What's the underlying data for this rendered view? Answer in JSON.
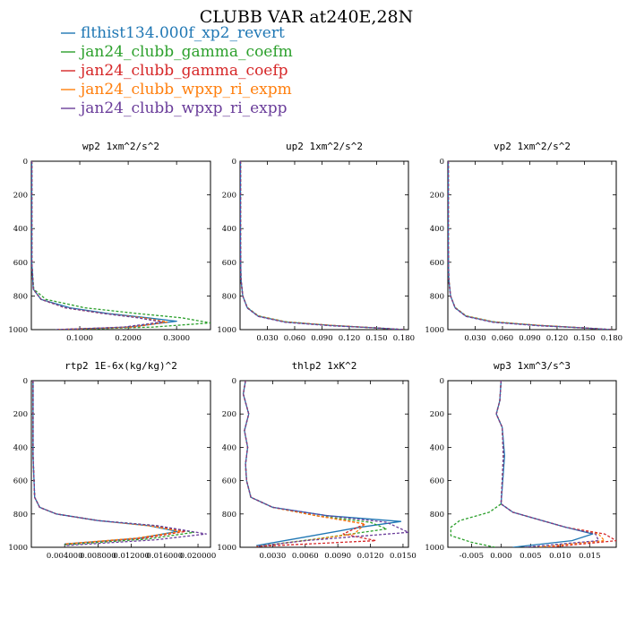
{
  "figure": {
    "title": "CLUBB VAR at240E,28N",
    "legend": [
      {
        "label": "flthist134.000f_xp2_revert",
        "color": "#1f77b4",
        "dash": false
      },
      {
        "label": "jan24_clubb_gamma_coefm",
        "color": "#2ca02c",
        "dash": true
      },
      {
        "label": "jan24_clubb_gamma_coefp",
        "color": "#d62728",
        "dash": true
      },
      {
        "label": "jan24_clubb_wpxp_ri_expm",
        "color": "#ff7f0e",
        "dash": true
      },
      {
        "label": "jan24_clubb_wpxp_ri_expp",
        "color": "#6a3d9a",
        "dash": true
      }
    ]
  },
  "chart_data": [
    {
      "type": "line",
      "title": "wp2  1xm^2/s^2",
      "xlim": [
        0,
        0.37
      ],
      "ylim": [
        1000,
        0
      ],
      "xticks": [
        0.1,
        0.2,
        0.3
      ],
      "xtick_labels": [
        "0.1000",
        "0.2000",
        "0.3000"
      ],
      "yticks": [
        0,
        200,
        400,
        600,
        800,
        1000
      ],
      "series": [
        {
          "color": "#1f77b4",
          "dash": false,
          "x": [
            0.001,
            0.001,
            0.004,
            0.02,
            0.08,
            0.16,
            0.24,
            0.3,
            0.2,
            0.05
          ],
          "y": [
            0,
            600,
            760,
            820,
            870,
            905,
            930,
            950,
            985,
            1000
          ]
        },
        {
          "color": "#2ca02c",
          "dash": true,
          "x": [
            0.001,
            0.001,
            0.005,
            0.03,
            0.11,
            0.22,
            0.31,
            0.37,
            0.25,
            0.07
          ],
          "y": [
            0,
            600,
            760,
            820,
            870,
            905,
            930,
            960,
            985,
            1000
          ]
        },
        {
          "color": "#d62728",
          "dash": true,
          "x": [
            0.001,
            0.001,
            0.004,
            0.02,
            0.07,
            0.15,
            0.23,
            0.28,
            0.21,
            0.05
          ],
          "y": [
            0,
            600,
            760,
            820,
            870,
            905,
            930,
            955,
            985,
            1000
          ]
        },
        {
          "color": "#ff7f0e",
          "dash": true,
          "x": [
            0.001,
            0.001,
            0.004,
            0.02,
            0.07,
            0.15,
            0.23,
            0.28,
            0.2,
            0.05
          ],
          "y": [
            0,
            600,
            760,
            820,
            870,
            905,
            930,
            955,
            985,
            1000
          ]
        },
        {
          "color": "#6a3d9a",
          "dash": true,
          "x": [
            0.001,
            0.001,
            0.004,
            0.02,
            0.07,
            0.15,
            0.22,
            0.27,
            0.19,
            0.05
          ],
          "y": [
            0,
            600,
            760,
            820,
            870,
            905,
            930,
            955,
            985,
            1000
          ]
        }
      ]
    },
    {
      "type": "line",
      "title": "up2  1xm^2/s^2",
      "xlim": [
        0,
        0.185
      ],
      "ylim": [
        1000,
        0
      ],
      "xticks": [
        0.03,
        0.06,
        0.09,
        0.12,
        0.15,
        0.18
      ],
      "xtick_labels": [
        "0.030",
        "0.060",
        "0.090",
        "0.120",
        "0.150",
        "0.180"
      ],
      "yticks": [
        0,
        200,
        400,
        600,
        800,
        1000
      ],
      "series": [
        {
          "color": "#1f77b4",
          "dash": false,
          "x": [
            0.0005,
            0.0005,
            0.001,
            0.003,
            0.008,
            0.02,
            0.05,
            0.1,
            0.15,
            0.18
          ],
          "y": [
            0,
            500,
            700,
            800,
            870,
            920,
            955,
            975,
            990,
            1000
          ]
        },
        {
          "color": "#2ca02c",
          "dash": true,
          "x": [
            0.0005,
            0.0005,
            0.001,
            0.003,
            0.008,
            0.02,
            0.05,
            0.1,
            0.15,
            0.18
          ],
          "y": [
            0,
            500,
            700,
            800,
            868,
            918,
            953,
            975,
            990,
            1000
          ]
        },
        {
          "color": "#d62728",
          "dash": true,
          "x": [
            0.0005,
            0.0005,
            0.001,
            0.003,
            0.008,
            0.02,
            0.05,
            0.1,
            0.15,
            0.18
          ],
          "y": [
            0,
            500,
            700,
            800,
            870,
            920,
            955,
            975,
            990,
            1000
          ]
        },
        {
          "color": "#ff7f0e",
          "dash": true,
          "x": [
            0.0005,
            0.0005,
            0.001,
            0.003,
            0.008,
            0.02,
            0.05,
            0.1,
            0.15,
            0.18
          ],
          "y": [
            0,
            500,
            700,
            800,
            870,
            920,
            955,
            975,
            990,
            1000
          ]
        },
        {
          "color": "#6a3d9a",
          "dash": true,
          "x": [
            0.0005,
            0.0005,
            0.001,
            0.003,
            0.008,
            0.02,
            0.05,
            0.1,
            0.15,
            0.18
          ],
          "y": [
            0,
            500,
            700,
            800,
            872,
            922,
            957,
            977,
            990,
            1000
          ]
        }
      ]
    },
    {
      "type": "line",
      "title": "vp2  1xm^2/s^2",
      "xlim": [
        0,
        0.185
      ],
      "ylim": [
        1000,
        0
      ],
      "xticks": [
        0.03,
        0.06,
        0.09,
        0.12,
        0.15,
        0.18
      ],
      "xtick_labels": [
        "0.030",
        "0.060",
        "0.090",
        "0.120",
        "0.150",
        "0.180"
      ],
      "yticks": [
        0,
        200,
        400,
        600,
        800,
        1000
      ],
      "series": [
        {
          "color": "#1f77b4",
          "dash": false,
          "x": [
            0.0005,
            0.0005,
            0.001,
            0.003,
            0.008,
            0.02,
            0.05,
            0.1,
            0.15,
            0.18
          ],
          "y": [
            0,
            500,
            700,
            800,
            870,
            920,
            955,
            975,
            990,
            1000
          ]
        },
        {
          "color": "#2ca02c",
          "dash": true,
          "x": [
            0.0005,
            0.0005,
            0.001,
            0.003,
            0.008,
            0.02,
            0.05,
            0.1,
            0.15,
            0.18
          ],
          "y": [
            0,
            500,
            700,
            800,
            868,
            918,
            953,
            975,
            990,
            1000
          ]
        },
        {
          "color": "#d62728",
          "dash": true,
          "x": [
            0.0005,
            0.0005,
            0.001,
            0.003,
            0.008,
            0.02,
            0.05,
            0.1,
            0.15,
            0.18
          ],
          "y": [
            0,
            500,
            700,
            800,
            870,
            920,
            955,
            975,
            990,
            1000
          ]
        },
        {
          "color": "#ff7f0e",
          "dash": true,
          "x": [
            0.0005,
            0.0005,
            0.001,
            0.003,
            0.008,
            0.02,
            0.05,
            0.1,
            0.15,
            0.18
          ],
          "y": [
            0,
            500,
            700,
            800,
            870,
            920,
            955,
            975,
            990,
            1000
          ]
        },
        {
          "color": "#6a3d9a",
          "dash": true,
          "x": [
            0.0005,
            0.0005,
            0.001,
            0.003,
            0.008,
            0.02,
            0.05,
            0.1,
            0.15,
            0.18
          ],
          "y": [
            0,
            500,
            700,
            800,
            872,
            922,
            957,
            977,
            990,
            1000
          ]
        }
      ]
    },
    {
      "type": "line",
      "title": "rtp2  1E-6x(kg/kg)^2",
      "xlim": [
        0,
        0.0215
      ],
      "ylim": [
        1000,
        0
      ],
      "xticks": [
        0.004,
        0.008,
        0.012,
        0.016,
        0.02
      ],
      "xtick_labels": [
        "0.004000",
        "0.008000",
        "0.012000",
        "0.016000",
        "0.020000"
      ],
      "yticks": [
        0,
        200,
        400,
        600,
        800,
        1000
      ],
      "series": [
        {
          "color": "#1f77b4",
          "dash": false,
          "x": [
            0.0002,
            0.0002,
            0.0004,
            0.001,
            0.003,
            0.008,
            0.014,
            0.0175,
            0.013,
            0.004
          ],
          "y": [
            0,
            450,
            700,
            760,
            800,
            840,
            870,
            905,
            945,
            980
          ]
        },
        {
          "color": "#2ca02c",
          "dash": true,
          "x": [
            0.0002,
            0.0002,
            0.0004,
            0.001,
            0.003,
            0.008,
            0.015,
            0.0195,
            0.014,
            0.004
          ],
          "y": [
            0,
            450,
            700,
            760,
            800,
            840,
            870,
            910,
            950,
            985
          ]
        },
        {
          "color": "#d62728",
          "dash": true,
          "x": [
            0.0002,
            0.0002,
            0.0004,
            0.001,
            0.003,
            0.008,
            0.0145,
            0.0185,
            0.0135,
            0.004
          ],
          "y": [
            0,
            450,
            700,
            760,
            800,
            840,
            870,
            905,
            945,
            980
          ]
        },
        {
          "color": "#ff7f0e",
          "dash": true,
          "x": [
            0.0002,
            0.0002,
            0.0004,
            0.001,
            0.003,
            0.008,
            0.014,
            0.018,
            0.0125,
            0.004
          ],
          "y": [
            0,
            450,
            700,
            760,
            800,
            840,
            870,
            905,
            945,
            980
          ]
        },
        {
          "color": "#6a3d9a",
          "dash": true,
          "x": [
            0.0002,
            0.0002,
            0.0004,
            0.001,
            0.003,
            0.008,
            0.015,
            0.021,
            0.015,
            0.004
          ],
          "y": [
            0,
            450,
            700,
            760,
            800,
            840,
            870,
            920,
            955,
            990
          ]
        }
      ]
    },
    {
      "type": "line",
      "title": "thlp2  1xK^2",
      "xlim": [
        0,
        0.0155
      ],
      "ylim": [
        1000,
        0
      ],
      "xticks": [
        0.003,
        0.006,
        0.009,
        0.012,
        0.015
      ],
      "xtick_labels": [
        "0.0030",
        "0.0060",
        "0.0090",
        "0.0120",
        "0.0150"
      ],
      "yticks": [
        0,
        200,
        400,
        600,
        800,
        1000
      ],
      "series": [
        {
          "color": "#1f77b4",
          "dash": false,
          "x": [
            0.0005,
            0.0003,
            0.0008,
            0.0004,
            0.0007,
            0.0005,
            0.0006,
            0.001,
            0.003,
            0.008,
            0.0148,
            0.011,
            0.005,
            0.0015
          ],
          "y": [
            0,
            80,
            200,
            300,
            400,
            500,
            600,
            700,
            760,
            810,
            845,
            880,
            950,
            990
          ]
        },
        {
          "color": "#2ca02c",
          "dash": true,
          "x": [
            0.0005,
            0.0003,
            0.0008,
            0.0004,
            0.0007,
            0.0005,
            0.0006,
            0.001,
            0.003,
            0.007,
            0.012,
            0.0135,
            0.007,
            0.0015
          ],
          "y": [
            0,
            80,
            200,
            300,
            400,
            500,
            600,
            700,
            760,
            810,
            850,
            890,
            950,
            995
          ]
        },
        {
          "color": "#d62728",
          "dash": true,
          "x": [
            0.0005,
            0.0003,
            0.0008,
            0.0004,
            0.0007,
            0.0005,
            0.0006,
            0.001,
            0.003,
            0.007,
            0.0115,
            0.0095,
            0.0125,
            0.0015
          ],
          "y": [
            0,
            80,
            200,
            300,
            400,
            500,
            600,
            700,
            760,
            810,
            860,
            920,
            960,
            995
          ]
        },
        {
          "color": "#ff7f0e",
          "dash": true,
          "x": [
            0.0005,
            0.0003,
            0.0008,
            0.0004,
            0.0007,
            0.0005,
            0.0006,
            0.001,
            0.003,
            0.007,
            0.0115,
            0.0105,
            0.006,
            0.0015
          ],
          "y": [
            0,
            80,
            200,
            300,
            400,
            500,
            600,
            700,
            760,
            810,
            860,
            920,
            960,
            995
          ]
        },
        {
          "color": "#6a3d9a",
          "dash": true,
          "x": [
            0.0005,
            0.0003,
            0.0008,
            0.0004,
            0.0007,
            0.0005,
            0.0006,
            0.001,
            0.003,
            0.008,
            0.0135,
            0.0155,
            0.006,
            0.0015
          ],
          "y": [
            0,
            80,
            200,
            300,
            400,
            500,
            600,
            700,
            760,
            810,
            850,
            910,
            960,
            995
          ]
        }
      ]
    },
    {
      "type": "line",
      "title": "wp3  1xm^3/s^3",
      "xlim": [
        -0.009,
        0.0195
      ],
      "ylim": [
        1000,
        0
      ],
      "xticks": [
        -0.005,
        0.0,
        0.005,
        0.01,
        0.015
      ],
      "xtick_labels": [
        "-0.005",
        "0.000",
        "0.005",
        "0.010",
        "0.015"
      ],
      "yticks": [
        0,
        200,
        400,
        600,
        800,
        1000
      ],
      "series": [
        {
          "color": "#1f77b4",
          "dash": false,
          "x": [
            0.0,
            -0.0002,
            -0.0008,
            0.0002,
            0.0006,
            0.0003,
            0.0,
            0.002,
            0.006,
            0.011,
            0.0155,
            0.012,
            0.002
          ],
          "y": [
            0,
            120,
            200,
            280,
            450,
            600,
            740,
            790,
            830,
            880,
            920,
            960,
            1000
          ]
        },
        {
          "color": "#2ca02c",
          "dash": true,
          "x": [
            0.0,
            -0.0002,
            -0.0008,
            0.0002,
            0.0004,
            0.0002,
            0.0,
            -0.002,
            -0.007,
            -0.0085,
            -0.0085,
            -0.005,
            -0.001
          ],
          "y": [
            0,
            120,
            200,
            280,
            450,
            600,
            740,
            790,
            840,
            880,
            930,
            970,
            1000
          ]
        },
        {
          "color": "#d62728",
          "dash": true,
          "x": [
            0.0,
            -0.0002,
            -0.0008,
            0.0002,
            0.0004,
            0.0002,
            0.0,
            0.002,
            0.006,
            0.011,
            0.0175,
            0.0195,
            0.008
          ],
          "y": [
            0,
            120,
            200,
            280,
            450,
            600,
            740,
            790,
            830,
            880,
            920,
            960,
            1000
          ]
        },
        {
          "color": "#ff7f0e",
          "dash": true,
          "x": [
            0.0,
            -0.0002,
            -0.0008,
            0.0002,
            0.0004,
            0.0002,
            0.0,
            0.002,
            0.006,
            0.011,
            0.0165,
            0.0175,
            0.006
          ],
          "y": [
            0,
            120,
            200,
            280,
            450,
            600,
            740,
            790,
            830,
            880,
            920,
            960,
            1000
          ]
        },
        {
          "color": "#6a3d9a",
          "dash": true,
          "x": [
            0.0,
            -0.0002,
            -0.0008,
            0.0002,
            0.0004,
            0.0002,
            0.0,
            0.002,
            0.006,
            0.011,
            0.016,
            0.0165,
            0.004
          ],
          "y": [
            0,
            120,
            200,
            280,
            450,
            600,
            740,
            790,
            830,
            880,
            920,
            960,
            1000
          ]
        }
      ]
    }
  ]
}
